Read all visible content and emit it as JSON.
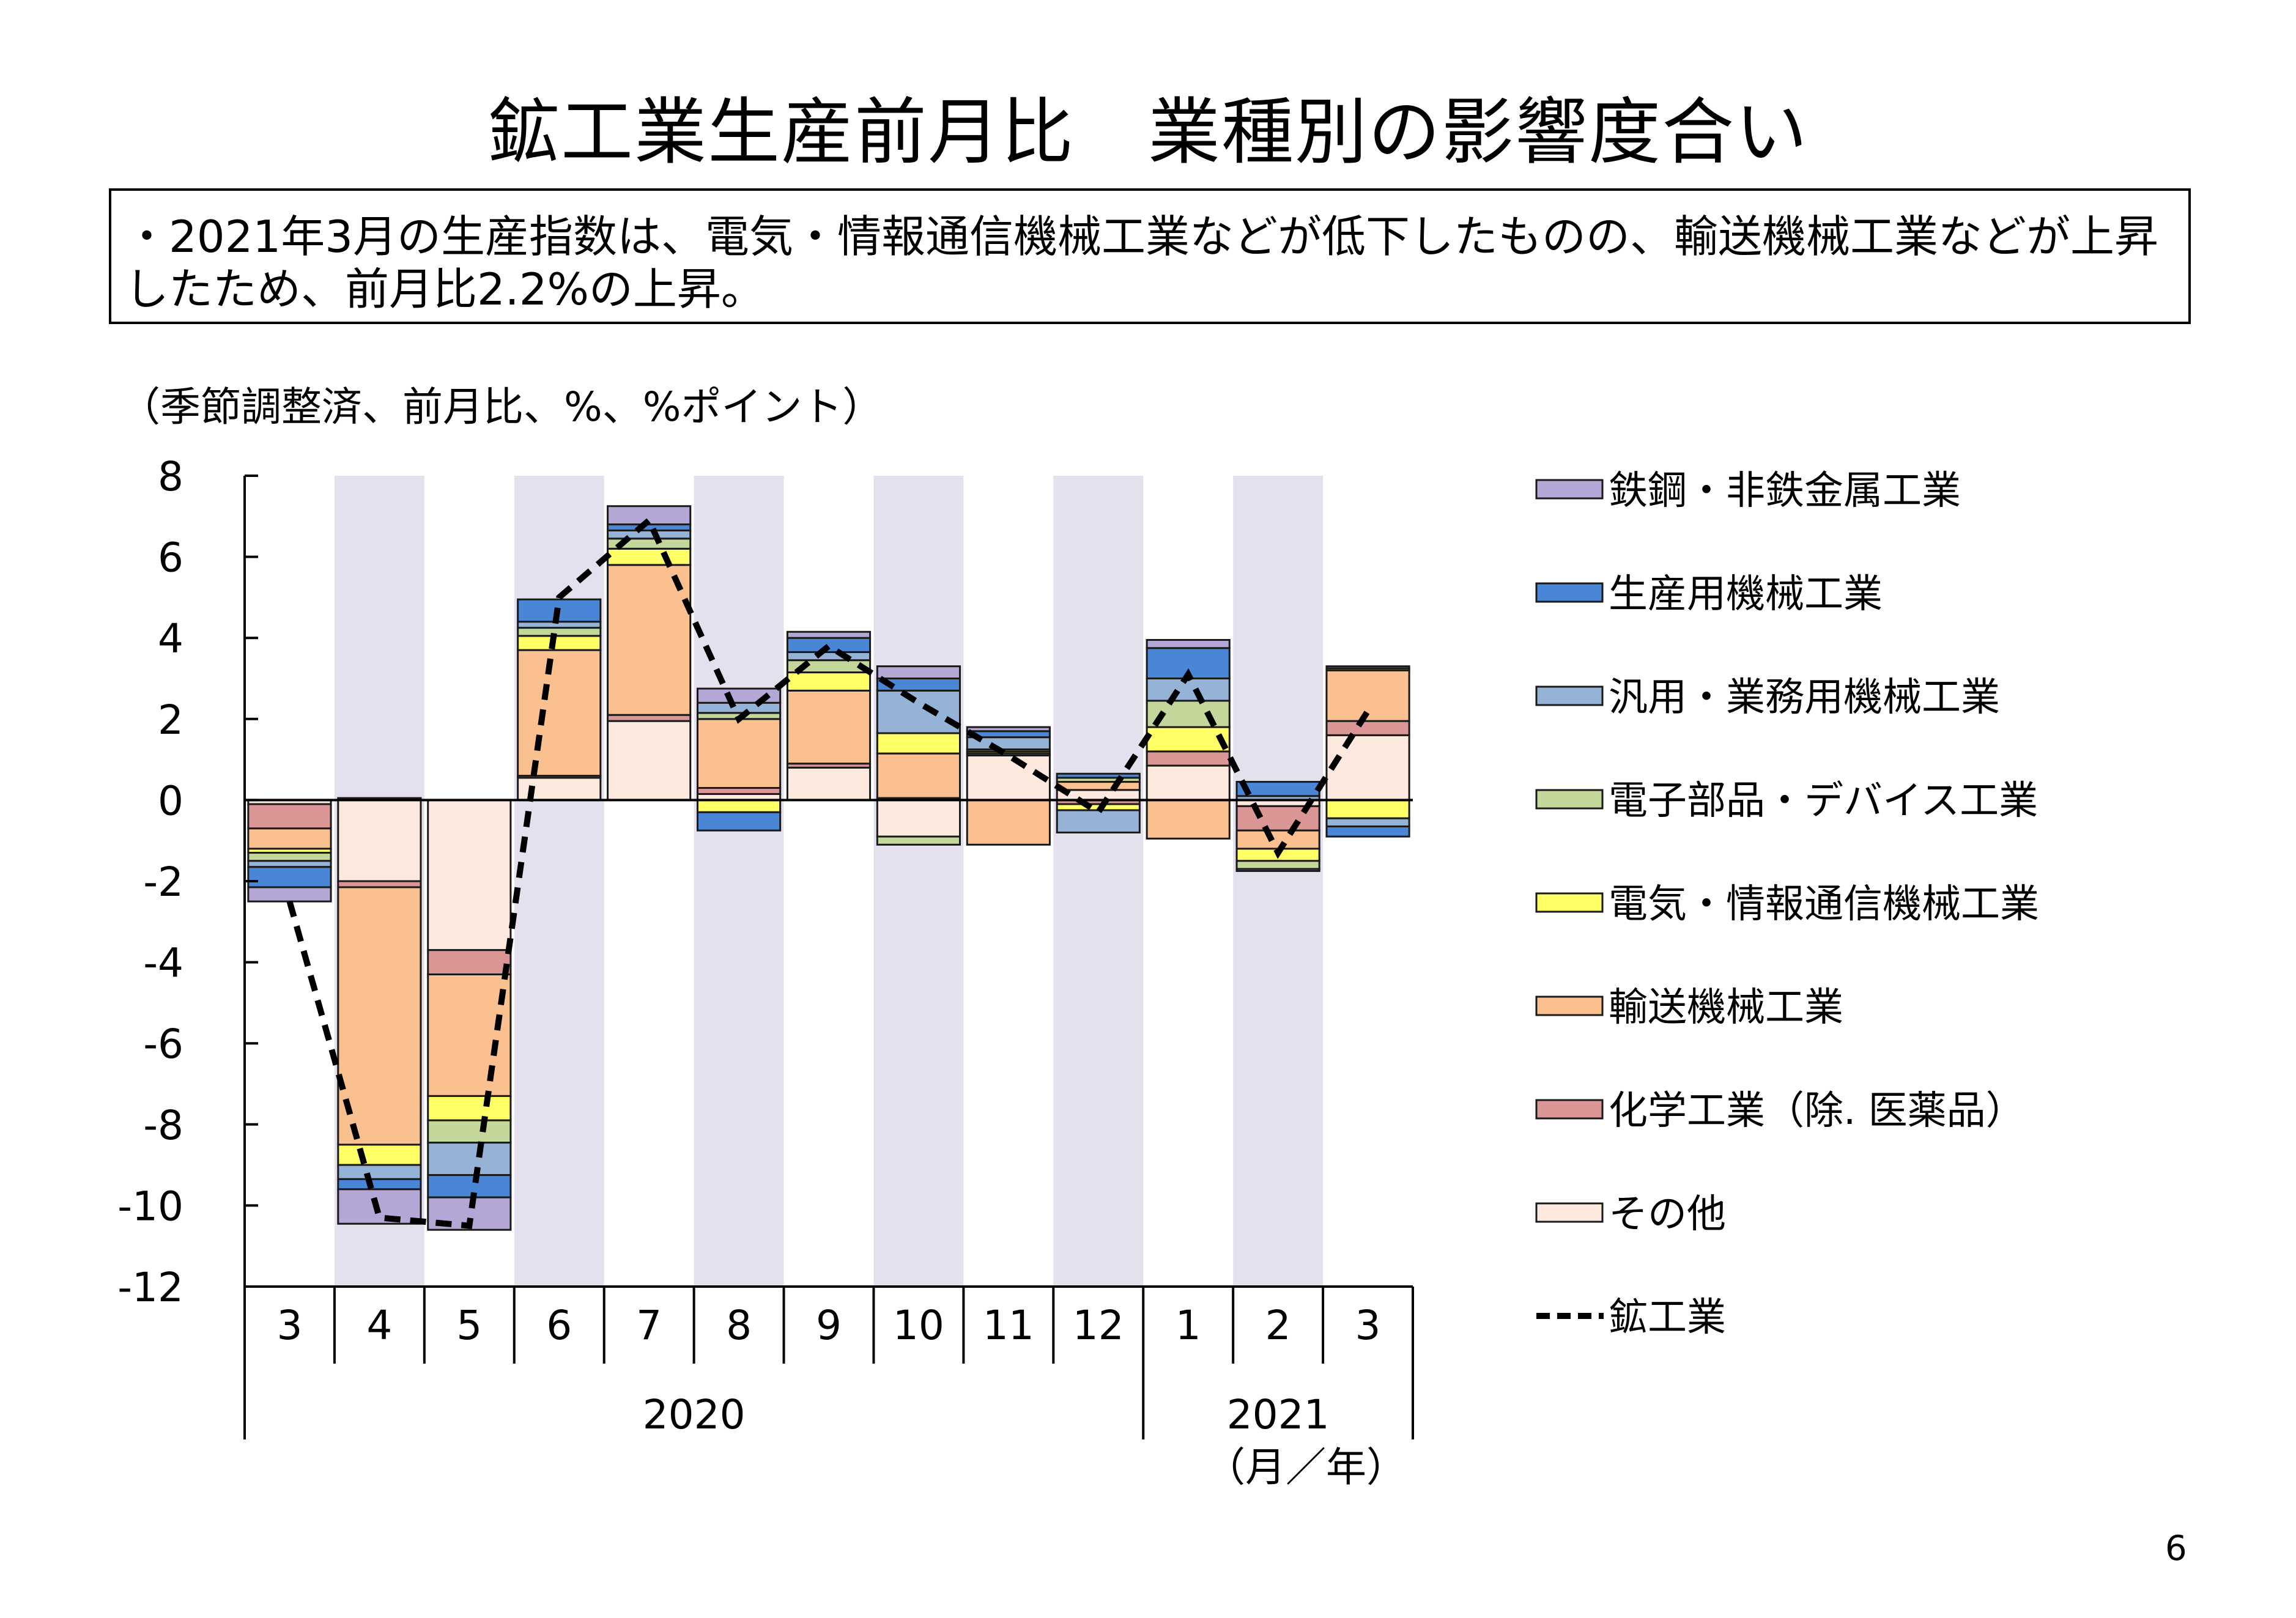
{
  "page": {
    "title": "鉱工業生産前月比　業種別の影響度合い",
    "summary": "・2021年3月の生産指数は、電気・情報通信機械工業などが低下したものの、輸送機械工業などが上昇したため、前月比2.2%の上昇。",
    "unit_label": "（季節調整済、前月比、%、%ポイント）",
    "page_number": "6"
  },
  "chart_data": {
    "type": "bar",
    "stacked": true,
    "ylim": [
      -12,
      8
    ],
    "yticks": [
      "8",
      "6",
      "4",
      "2",
      "0",
      "-2",
      "-4",
      "-6",
      "-8",
      "-10",
      "-12"
    ],
    "categories": [
      "3",
      "4",
      "5",
      "6",
      "7",
      "8",
      "9",
      "10",
      "11",
      "12",
      "1",
      "2",
      "3"
    ],
    "year_groups": [
      {
        "label": "2020",
        "from": 0,
        "to": 9
      },
      {
        "label": "2021",
        "from": 10,
        "to": 12
      }
    ],
    "axis_unit_label": "（月／年）",
    "shaded_categories": [
      1,
      3,
      5,
      7,
      9,
      11
    ],
    "shade_color": "#e4e0ee",
    "series": [
      {
        "name": "その他",
        "color": "#fde9dd",
        "values": [
          -0.1,
          -2.0,
          -3.7,
          0.55,
          1.95,
          0.15,
          0.8,
          -0.9,
          1.1,
          0.25,
          0.85,
          -0.15,
          1.6
        ]
      },
      {
        "name": "化学工業（除．医薬品）",
        "color": "#d99694",
        "values": [
          -0.6,
          -0.15,
          -0.6,
          0.05,
          0.15,
          0.15,
          0.1,
          0.05,
          0.05,
          -0.1,
          0.35,
          -0.6,
          0.35
        ]
      },
      {
        "name": "輸送機械工業",
        "color": "#fac090",
        "values": [
          -0.5,
          -6.35,
          -3.0,
          3.1,
          3.7,
          1.7,
          1.8,
          1.1,
          -1.1,
          0.2,
          -0.95,
          -0.45,
          1.25
        ]
      },
      {
        "name": "電気・情報通信機械工業",
        "color": "#ffff66",
        "values": [
          -0.1,
          -0.5,
          -0.6,
          0.35,
          0.4,
          -0.3,
          0.45,
          0.5,
          0.05,
          -0.15,
          0.6,
          -0.3,
          -0.45
        ]
      },
      {
        "name": "電子部品・デバイス工業",
        "color": "#c4d79b",
        "values": [
          -0.2,
          0.05,
          -0.55,
          0.2,
          0.25,
          0.15,
          0.3,
          -0.2,
          0.05,
          0.1,
          0.65,
          -0.2,
          0.05
        ]
      },
      {
        "name": "汎用・業務用機械工業",
        "color": "#95b3d7",
        "values": [
          -0.15,
          -0.35,
          -0.8,
          0.15,
          0.2,
          0.25,
          0.2,
          1.05,
          0.3,
          -0.55,
          0.55,
          0.1,
          -0.2
        ]
      },
      {
        "name": "生産用機械工業",
        "color": "#4a86d6",
        "values": [
          -0.5,
          -0.25,
          -0.55,
          0.55,
          0.15,
          -0.45,
          0.35,
          0.3,
          0.15,
          0.1,
          0.75,
          0.35,
          -0.25
        ]
      },
      {
        "name": "鉄鋼・非鉄金属工業",
        "color": "#b4a7d6",
        "values": [
          -0.35,
          -0.85,
          -0.8,
          0.0,
          0.45,
          0.35,
          0.15,
          0.3,
          0.1,
          0.0,
          0.2,
          -0.05,
          0.05
        ]
      }
    ],
    "line": {
      "name": "鉱工業",
      "color": "#000000",
      "values": [
        -2.5,
        -10.3,
        -10.5,
        5.0,
        6.9,
        2.0,
        3.8,
        2.4,
        1.1,
        -0.3,
        3.1,
        -1.3,
        2.2
      ]
    },
    "legend": {
      "placement": "right",
      "order": [
        "鉄鋼・非鉄金属工業",
        "生産用機械工業",
        "汎用・業務用機械工業",
        "電子部品・デバイス工業",
        "電気・情報通信機械工業",
        "輸送機械工業",
        "化学工業（除．医薬品）",
        "その他",
        "鉱工業"
      ],
      "items": [
        "鉄鋼・非鉄金属工業",
        "生産用機械工業",
        "汎用・業務用機械工業",
        "電子部品・デバイス工業",
        "電気・情報通信機械工業",
        "輸送機械工業",
        "化学工業（除.  医薬品）",
        "その他",
        "鉱工業"
      ]
    }
  }
}
